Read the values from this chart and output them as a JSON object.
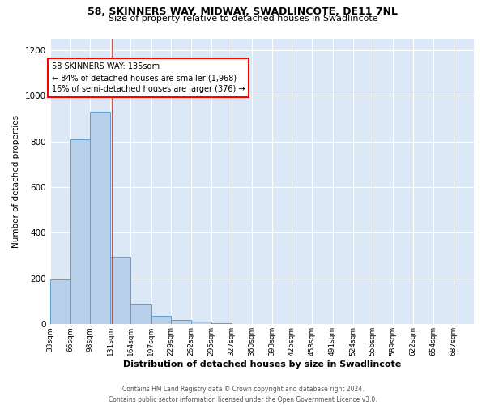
{
  "title1": "58, SKINNERS WAY, MIDWAY, SWADLINCOTE, DE11 7NL",
  "title2": "Size of property relative to detached houses in Swadlincote",
  "xlabel": "Distribution of detached houses by size in Swadlincote",
  "ylabel": "Number of detached properties",
  "footer1": "Contains HM Land Registry data © Crown copyright and database right 2024.",
  "footer2": "Contains public sector information licensed under the Open Government Licence v3.0.",
  "annotation_title": "58 SKINNERS WAY: 135sqm",
  "annotation_line1": "← 84% of detached houses are smaller (1,968)",
  "annotation_line2": "16% of semi-detached houses are larger (376) →",
  "bar_color": "#b8d0ea",
  "bar_edge_color": "#5a9fd4",
  "bg_color": "#dce8f5",
  "vline_color": "#c0392b",
  "vline_x": 135,
  "categories": [
    "33sqm",
    "66sqm",
    "98sqm",
    "131sqm",
    "164sqm",
    "197sqm",
    "229sqm",
    "262sqm",
    "295sqm",
    "327sqm",
    "360sqm",
    "393sqm",
    "425sqm",
    "458sqm",
    "491sqm",
    "524sqm",
    "556sqm",
    "589sqm",
    "622sqm",
    "654sqm",
    "687sqm"
  ],
  "bin_edges": [
    33,
    66,
    98,
    131,
    164,
    197,
    229,
    262,
    295,
    327,
    360,
    393,
    425,
    458,
    491,
    524,
    556,
    589,
    622,
    654,
    687,
    720
  ],
  "values": [
    195,
    810,
    930,
    295,
    88,
    38,
    20,
    10,
    5,
    0,
    0,
    0,
    0,
    0,
    0,
    0,
    0,
    0,
    0,
    0,
    0
  ],
  "ylim": [
    0,
    1250
  ],
  "yticks": [
    0,
    200,
    400,
    600,
    800,
    1000,
    1200
  ]
}
